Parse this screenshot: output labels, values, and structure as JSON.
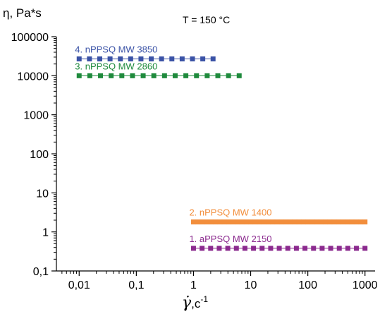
{
  "chart_data": {
    "type": "scatter",
    "annotation": "T = 150 °C",
    "ylabel": "η, Pa*s",
    "xlabel_symbol": "γ̇",
    "xlabel_unit": ",c",
    "xlabel_exp": "-1",
    "xscale": "log",
    "yscale": "log",
    "xlim": [
      0.004,
      1500
    ],
    "ylim": [
      0.1,
      100000
    ],
    "grid": false,
    "legend": "inline labels",
    "x_ticks": [
      {
        "value": 0.01,
        "label": "0,01"
      },
      {
        "value": 0.1,
        "label": "0,1"
      },
      {
        "value": 1,
        "label": "1"
      },
      {
        "value": 10,
        "label": "10"
      },
      {
        "value": 100,
        "label": "100"
      },
      {
        "value": 1000,
        "label": "1000"
      }
    ],
    "y_ticks": [
      {
        "value": 0.1,
        "label": "0,1"
      },
      {
        "value": 1,
        "label": "1"
      },
      {
        "value": 10,
        "label": "10"
      },
      {
        "value": 100,
        "label": "100"
      },
      {
        "value": 1000,
        "label": "1000"
      },
      {
        "value": 10000,
        "label": "10000"
      },
      {
        "value": 100000,
        "label": "100000"
      }
    ],
    "series": [
      {
        "name": "4. nPPSQ MW 3850",
        "color": "#3a52a6",
        "x_range": [
          0.01,
          2.2
        ],
        "y": 27000,
        "points": 14
      },
      {
        "name": "3. nPPSQ MW 2860",
        "color": "#1e8a3c",
        "x_range": [
          0.01,
          6.3
        ],
        "y": 10000,
        "points": 16
      },
      {
        "name": "2. nPPSQ MW 1400",
        "color": "#f28e3c",
        "x_range": [
          1,
          1000
        ],
        "y": 1.8,
        "points": 40
      },
      {
        "name": "1. aPPSQ MW 2150",
        "color": "#8b2a8e",
        "x_range": [
          1,
          1000
        ],
        "y": 0.38,
        "points": 21
      }
    ]
  }
}
